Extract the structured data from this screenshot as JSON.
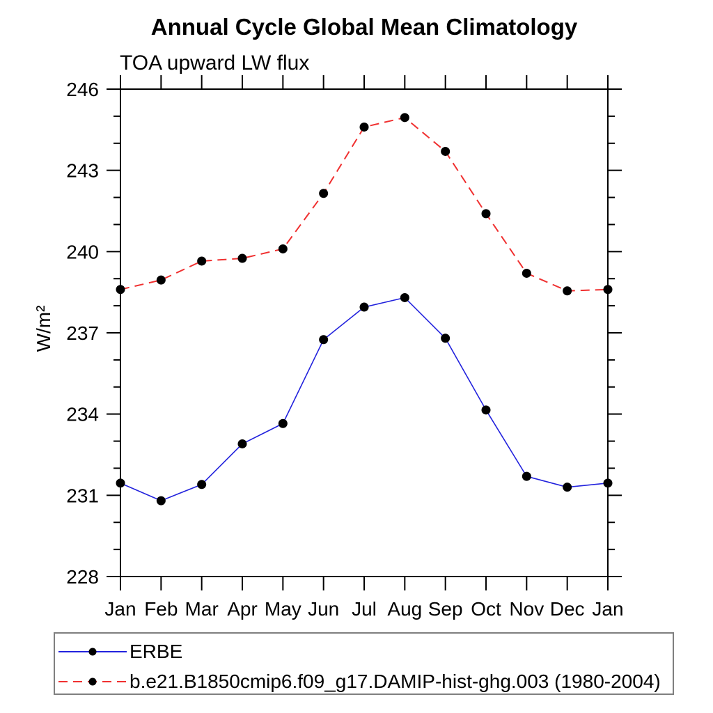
{
  "chart_data": {
    "type": "line",
    "title": "Annual Cycle Global Mean Climatology",
    "subtitle": "TOA upward LW flux",
    "ylabel": "W/m²",
    "xlabel": "",
    "categories": [
      "Jan",
      "Feb",
      "Mar",
      "Apr",
      "May",
      "Jun",
      "Jul",
      "Aug",
      "Sep",
      "Oct",
      "Nov",
      "Dec",
      "Jan"
    ],
    "series": [
      {
        "name": "ERBE",
        "color": "#2222dd",
        "line_style": "solid",
        "marker": "circle",
        "marker_color": "#000000",
        "values": [
          231.45,
          230.8,
          231.4,
          232.9,
          233.65,
          236.75,
          237.95,
          238.3,
          236.8,
          234.15,
          231.7,
          231.3,
          231.45
        ]
      },
      {
        "name": "b.e21.B1850cmip6.f09_g17.DAMIP-hist-ghg.003 (1980-2004)",
        "color": "#f03030",
        "line_style": "dashed",
        "marker": "circle",
        "marker_color": "#000000",
        "values": [
          238.6,
          238.95,
          239.65,
          239.75,
          240.1,
          242.15,
          244.6,
          244.95,
          243.7,
          241.4,
          239.2,
          238.55,
          238.6
        ]
      }
    ],
    "ylim": [
      228,
      246
    ],
    "ytick_major_step": 3,
    "ytick_minor_step": 1,
    "ytick_major_labels": [
      "228",
      "231",
      "234",
      "237",
      "240",
      "243",
      "246"
    ],
    "grid": false,
    "legend_position": "bottom",
    "axis_color": "#000000",
    "legend_border_color": "#7f7f7f"
  }
}
